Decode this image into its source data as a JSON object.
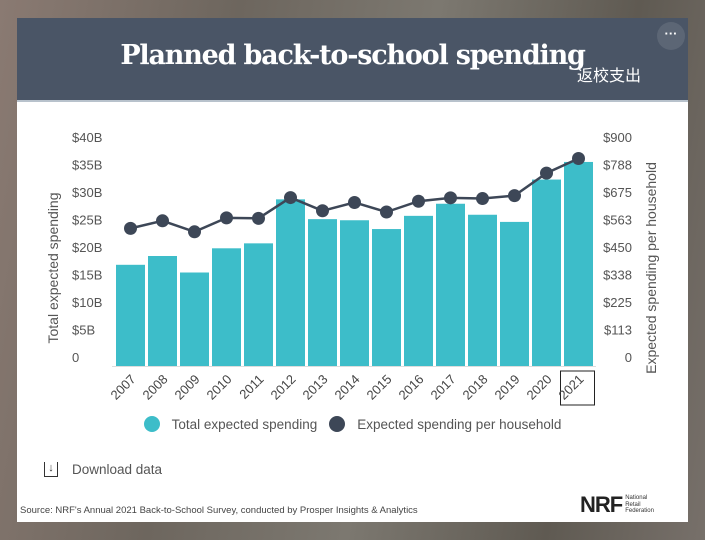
{
  "header": {
    "title": "Planned back-to-school spending",
    "caption_cn": "返校支出",
    "more_label": "···"
  },
  "chart_data": {
    "type": "bar+line",
    "title": "Planned back-to-school spending",
    "categories": [
      "2007",
      "2008",
      "2009",
      "2010",
      "2011",
      "2012",
      "2013",
      "2014",
      "2015",
      "2016",
      "2017",
      "2018",
      "2019",
      "2020",
      "2021"
    ],
    "highlighted_category": "2021",
    "series": [
      {
        "name": "Total expected spending",
        "type": "bar",
        "axis": "left",
        "unit": "$B",
        "color": "#3dbdc9",
        "values": [
          18.4,
          20.0,
          17.0,
          21.4,
          22.3,
          30.3,
          26.7,
          26.5,
          24.9,
          27.3,
          29.5,
          27.5,
          26.2,
          33.9,
          37.1
        ]
      },
      {
        "name": "Expected spending per household",
        "type": "line",
        "axis": "right",
        "unit": "$",
        "color": "#3d4757",
        "values": [
          563,
          594,
          549,
          606,
          604,
          689,
          635,
          669,
          630,
          674,
          688,
          685,
          697,
          789,
          849
        ]
      }
    ],
    "ylabel": "Total expected spending",
    "ylim": [
      0,
      40
    ],
    "yticks": [
      "0",
      "$5B",
      "$10B",
      "$15B",
      "$20B",
      "$25B",
      "$30B",
      "$35B",
      "$40B"
    ],
    "y2label": "Expected spending per household",
    "y2lim": [
      0,
      900
    ],
    "y2ticks": [
      "0",
      "$113",
      "$225",
      "$338",
      "$450",
      "$563",
      "$675",
      "$788",
      "$900"
    ],
    "legend_position": "bottom",
    "grid": false
  },
  "footer": {
    "download_label": "Download data",
    "source": "Source: NRF's Annual 2021 Back-to-School Survey, conducted by Prosper Insights & Analytics",
    "logo": "NRF",
    "logo_sub": "National Retail Federation"
  }
}
